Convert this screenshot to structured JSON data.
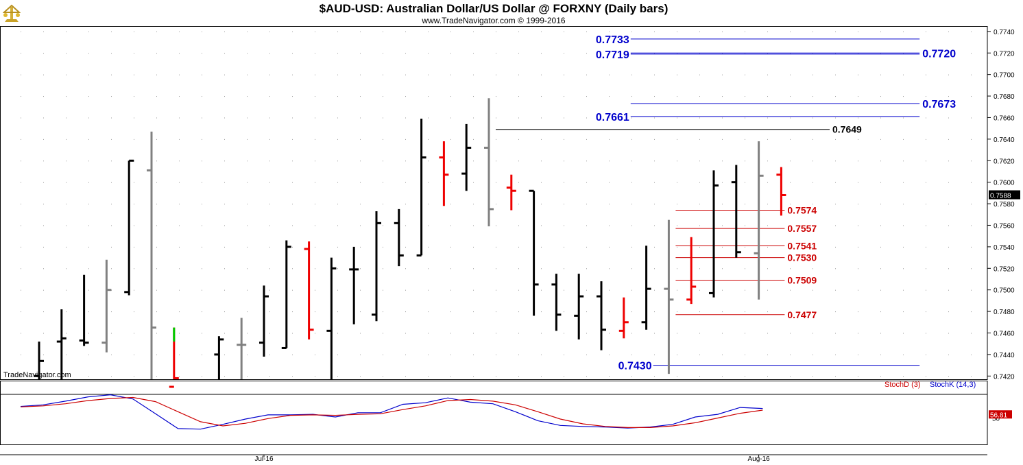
{
  "header": {
    "title": "$AUD-USD:  Australian Dollar/US Dollar @ FORXNY  (Daily bars)",
    "subtitle": "www.TradeNavigator.com © 1999-2016"
  },
  "watermark": "TradeNavigator.com",
  "indicator_labels": {
    "stoch_d": "StochD (3)",
    "stoch_k": "StochK (14,3)"
  },
  "colors": {
    "black_bar": "#000000",
    "gray_bar": "#808080",
    "red_bar": "#ee0000",
    "green_bar": "#00cc00",
    "blue_level": "#0000cc",
    "red_level": "#cc0000",
    "stoch_k": "#0000cc",
    "stoch_d": "#cc0000"
  },
  "chart_data": [
    {
      "type": "ohlc",
      "ylim": [
        0.7417,
        0.7745
      ],
      "x_labels": [
        {
          "label": "Jul-16",
          "index": 10
        },
        {
          "label": "Aug-16",
          "index": 32
        }
      ],
      "y_ticks": [
        "0.7420",
        "0.7440",
        "0.7460",
        "0.7480",
        "0.7500",
        "0.7520",
        "0.7540",
        "0.7560",
        "0.7580",
        "0.7600",
        "0.7620",
        "0.7640",
        "0.7660",
        "0.7680",
        "0.7700",
        "0.7720",
        "0.7740"
      ],
      "last_price": "0.7588",
      "bars": [
        {
          "i": 0,
          "o": 0.742,
          "h": 0.7452,
          "l": 0.74,
          "c": 0.7434,
          "color": "black"
        },
        {
          "i": 1,
          "o": 0.7452,
          "h": 0.7482,
          "l": 0.74,
          "c": 0.7455,
          "color": "black"
        },
        {
          "i": 2,
          "o": 0.7453,
          "h": 0.7514,
          "l": 0.7448,
          "c": 0.7451,
          "color": "black"
        },
        {
          "i": 3,
          "o": 0.7451,
          "h": 0.7528,
          "l": 0.7442,
          "c": 0.75,
          "color": "gray"
        },
        {
          "i": 4,
          "o": 0.7498,
          "h": 0.762,
          "l": 0.7495,
          "c": 0.762,
          "color": "black"
        },
        {
          "i": 5,
          "o": 0.7611,
          "h": 0.7647,
          "l": 0.74,
          "c": 0.7465,
          "color": "gray"
        },
        {
          "i": 6,
          "o": 0.741,
          "h": 0.7465,
          "l": 0.74,
          "c": 0.7418,
          "color": "red",
          "top_green": 0.7452
        },
        {
          "i": 8,
          "o": 0.744,
          "h": 0.7457,
          "l": 0.74,
          "c": 0.7454,
          "color": "black"
        },
        {
          "i": 9,
          "o": 0.7449,
          "h": 0.7474,
          "l": 0.74,
          "c": 0.7449,
          "color": "gray"
        },
        {
          "i": 10,
          "o": 0.7451,
          "h": 0.7504,
          "l": 0.7438,
          "c": 0.7494,
          "color": "black"
        },
        {
          "i": 11,
          "o": 0.7446,
          "h": 0.7546,
          "l": 0.7446,
          "c": 0.754,
          "color": "black"
        },
        {
          "i": 12,
          "o": 0.7538,
          "h": 0.7545,
          "l": 0.7454,
          "c": 0.7463,
          "color": "red"
        },
        {
          "i": 13,
          "o": 0.7462,
          "h": 0.753,
          "l": 0.74,
          "c": 0.752,
          "color": "black"
        },
        {
          "i": 14,
          "o": 0.7519,
          "h": 0.754,
          "l": 0.7468,
          "c": 0.7519,
          "color": "black"
        },
        {
          "i": 15,
          "o": 0.7477,
          "h": 0.7573,
          "l": 0.7471,
          "c": 0.7562,
          "color": "black"
        },
        {
          "i": 16,
          "o": 0.7562,
          "h": 0.7575,
          "l": 0.7522,
          "c": 0.7532,
          "color": "black"
        },
        {
          "i": 17,
          "o": 0.7532,
          "h": 0.7659,
          "l": 0.7532,
          "c": 0.7623,
          "color": "black"
        },
        {
          "i": 18,
          "o": 0.7623,
          "h": 0.7638,
          "l": 0.7578,
          "c": 0.7607,
          "color": "red"
        },
        {
          "i": 19,
          "o": 0.7608,
          "h": 0.7654,
          "l": 0.7592,
          "c": 0.7632,
          "color": "black"
        },
        {
          "i": 20,
          "o": 0.7632,
          "h": 0.7678,
          "l": 0.7559,
          "c": 0.7575,
          "color": "gray"
        },
        {
          "i": 21,
          "o": 0.7595,
          "h": 0.7607,
          "l": 0.7574,
          "c": 0.7592,
          "color": "red"
        },
        {
          "i": 22,
          "o": 0.7592,
          "h": 0.7592,
          "l": 0.7476,
          "c": 0.7505,
          "color": "black"
        },
        {
          "i": 23,
          "o": 0.7505,
          "h": 0.7515,
          "l": 0.7462,
          "c": 0.7477,
          "color": "black"
        },
        {
          "i": 24,
          "o": 0.7476,
          "h": 0.7515,
          "l": 0.7454,
          "c": 0.7494,
          "color": "black"
        },
        {
          "i": 25,
          "o": 0.7494,
          "h": 0.7508,
          "l": 0.7444,
          "c": 0.7463,
          "color": "black"
        },
        {
          "i": 26,
          "o": 0.7462,
          "h": 0.7493,
          "l": 0.7455,
          "c": 0.747,
          "color": "red"
        },
        {
          "i": 27,
          "o": 0.747,
          "h": 0.7541,
          "l": 0.7463,
          "c": 0.7501,
          "color": "black"
        },
        {
          "i": 28,
          "o": 0.7501,
          "h": 0.7565,
          "l": 0.7422,
          "c": 0.7491,
          "color": "gray"
        },
        {
          "i": 29,
          "o": 0.7491,
          "h": 0.7549,
          "l": 0.7487,
          "c": 0.7503,
          "color": "red"
        },
        {
          "i": 30,
          "o": 0.7497,
          "h": 0.7611,
          "l": 0.7493,
          "c": 0.7597,
          "color": "black"
        },
        {
          "i": 31,
          "o": 0.76,
          "h": 0.7616,
          "l": 0.753,
          "c": 0.7535,
          "color": "black"
        },
        {
          "i": 32,
          "o": 0.7534,
          "h": 0.7638,
          "l": 0.7491,
          "c": 0.7606,
          "color": "gray"
        },
        {
          "i": 33,
          "o": 0.7607,
          "h": 0.7614,
          "l": 0.7569,
          "c": 0.7588,
          "color": "red"
        }
      ],
      "levels": [
        {
          "label": "0.7733",
          "value": 0.7733,
          "color": "blue",
          "side": "left",
          "from": 26,
          "to": 39
        },
        {
          "label": "0.7719",
          "value": 0.7719,
          "color": "blue",
          "side": "left",
          "from": 26,
          "to": 39
        },
        {
          "label": "0.7720",
          "value": 0.772,
          "color": "blue",
          "side": "right",
          "from": 26,
          "to": 39
        },
        {
          "label": "0.7673",
          "value": 0.7673,
          "color": "blue",
          "side": "right",
          "from": 26,
          "to": 39
        },
        {
          "label": "0.7661",
          "value": 0.7661,
          "color": "blue",
          "side": "left",
          "from": 26,
          "to": 39
        },
        {
          "label": "0.7649",
          "value": 0.7649,
          "color": "black",
          "side": "right",
          "from": 20,
          "to": 35
        },
        {
          "label": "0.7574",
          "value": 0.7574,
          "color": "red",
          "side": "right",
          "from": 28,
          "to": 33
        },
        {
          "label": "0.7557",
          "value": 0.7557,
          "color": "red",
          "side": "right",
          "from": 28,
          "to": 33
        },
        {
          "label": "0.7541",
          "value": 0.7541,
          "color": "red",
          "side": "right",
          "from": 28,
          "to": 33
        },
        {
          "label": "0.7530",
          "value": 0.753,
          "color": "red",
          "side": "right",
          "from": 28,
          "to": 33
        },
        {
          "label": "0.7509",
          "value": 0.7509,
          "color": "red",
          "side": "right",
          "from": 28,
          "to": 33
        },
        {
          "label": "0.7477",
          "value": 0.7477,
          "color": "red",
          "side": "right",
          "from": 28,
          "to": 33
        },
        {
          "label": "0.7430",
          "value": 0.743,
          "color": "blue",
          "side": "left",
          "from": 27,
          "to": 39
        }
      ]
    },
    {
      "type": "line",
      "title": "StochD (3) / StochK (14,3)",
      "ylim": [
        0,
        100
      ],
      "y_ticks": [
        "50"
      ],
      "last_value": "56.81",
      "series": [
        {
          "name": "StochK (14,3)",
          "color": "blue",
          "x": [
            0,
            1,
            2,
            3,
            4,
            5,
            6,
            7,
            8,
            9,
            10,
            11,
            12,
            13,
            14,
            15,
            16,
            17,
            18,
            19,
            20,
            21,
            22,
            23,
            24,
            25,
            26,
            27,
            28,
            29,
            30,
            31,
            32,
            33
          ],
          "values": [
            72,
            75,
            82,
            90,
            94,
            86,
            58,
            30,
            29,
            38,
            48,
            56,
            56,
            57,
            52,
            60,
            60,
            76,
            79,
            88,
            80,
            77,
            62,
            45,
            36,
            34,
            33,
            31,
            33,
            38,
            52,
            57,
            70,
            68
          ]
        },
        {
          "name": "StochD (3)",
          "color": "red",
          "x": [
            0,
            1,
            2,
            3,
            4,
            5,
            6,
            7,
            8,
            9,
            10,
            11,
            12,
            13,
            14,
            15,
            16,
            17,
            18,
            19,
            20,
            21,
            22,
            23,
            24,
            25,
            26,
            27,
            28,
            29,
            30,
            31,
            32,
            33
          ],
          "values": [
            71,
            73,
            77,
            83,
            87,
            89,
            81,
            62,
            43,
            35,
            40,
            49,
            55,
            56,
            55,
            57,
            58,
            66,
            73,
            83,
            85,
            82,
            75,
            62,
            48,
            39,
            34,
            32,
            32,
            35,
            41,
            50,
            59,
            65
          ]
        }
      ]
    }
  ]
}
